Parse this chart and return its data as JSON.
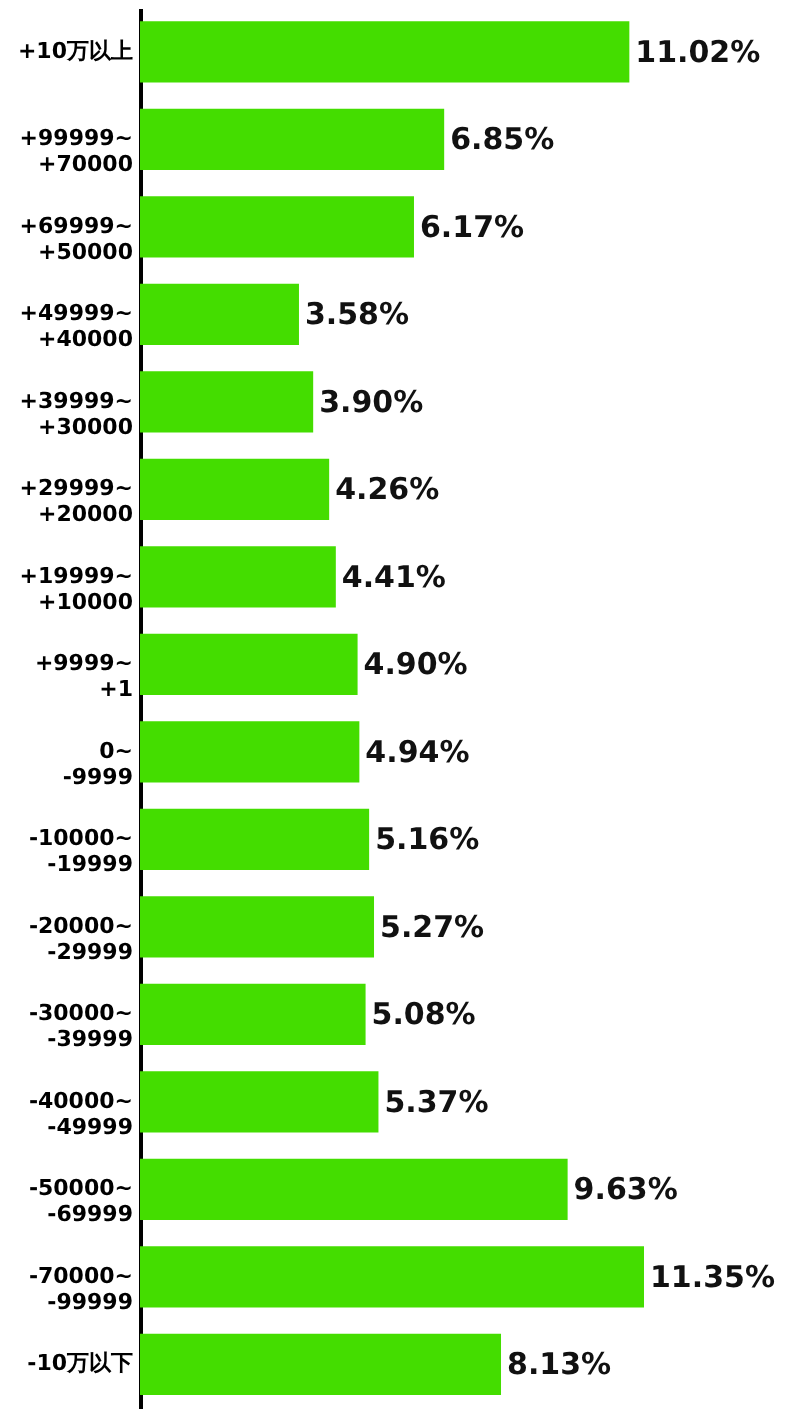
{
  "chart_data": {
    "type": "bar",
    "orientation": "horizontal",
    "tick_labels": "y",
    "categories": [
      "+10万以上",
      "+99999~\n+70000",
      "+69999~\n+50000",
      "+49999~\n+40000",
      "+39999~\n+30000",
      "+29999~\n+20000",
      "+19999~\n+10000",
      "+9999~\n+1",
      "0~\n-9999",
      "-10000~\n-19999",
      "-20000~\n-29999",
      "-30000~\n-39999",
      "-40000~\n-49999",
      "-50000~\n-69999",
      "-70000~\n-99999",
      "-10万以下"
    ],
    "series": [
      {
        "color": "#44dd00",
        "values": [
          11.02,
          6.85,
          6.17,
          3.58,
          3.9,
          4.26,
          4.41,
          4.9,
          4.94,
          5.16,
          5.27,
          5.08,
          5.37,
          9.63,
          11.35,
          8.13
        ],
        "value_labels": [
          "11.02%",
          "6.85%",
          "6.17%",
          "3.58%",
          "3.90%",
          "4.26%",
          "4.41%",
          "4.90%",
          "4.94%",
          "5.16%",
          "5.27%",
          "5.08%",
          "5.37%",
          "9.63%",
          "11.35%",
          "8.13%"
        ]
      }
    ]
  }
}
